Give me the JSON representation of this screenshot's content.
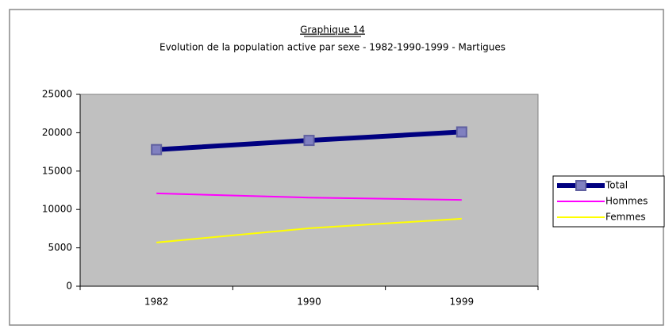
{
  "chart_data": {
    "type": "line",
    "title": "Graphique 14",
    "subtitle": "Evolution de la population active par sexe - 1982-1990-1999 - Martigues",
    "categories": [
      "1982",
      "1990",
      "1999"
    ],
    "series": [
      {
        "name": "Total",
        "color": "#000080",
        "values": [
          17800,
          19000,
          20100
        ]
      },
      {
        "name": "Hommes",
        "color": "#ff00ff",
        "values": [
          12100,
          11550,
          11250
        ]
      },
      {
        "name": "Femmes",
        "color": "#ffff00",
        "values": [
          5700,
          7550,
          8800
        ]
      }
    ],
    "ylim": [
      0,
      25000
    ],
    "yticks": [
      0,
      5000,
      10000,
      15000,
      20000,
      25000
    ],
    "legend": "right"
  }
}
